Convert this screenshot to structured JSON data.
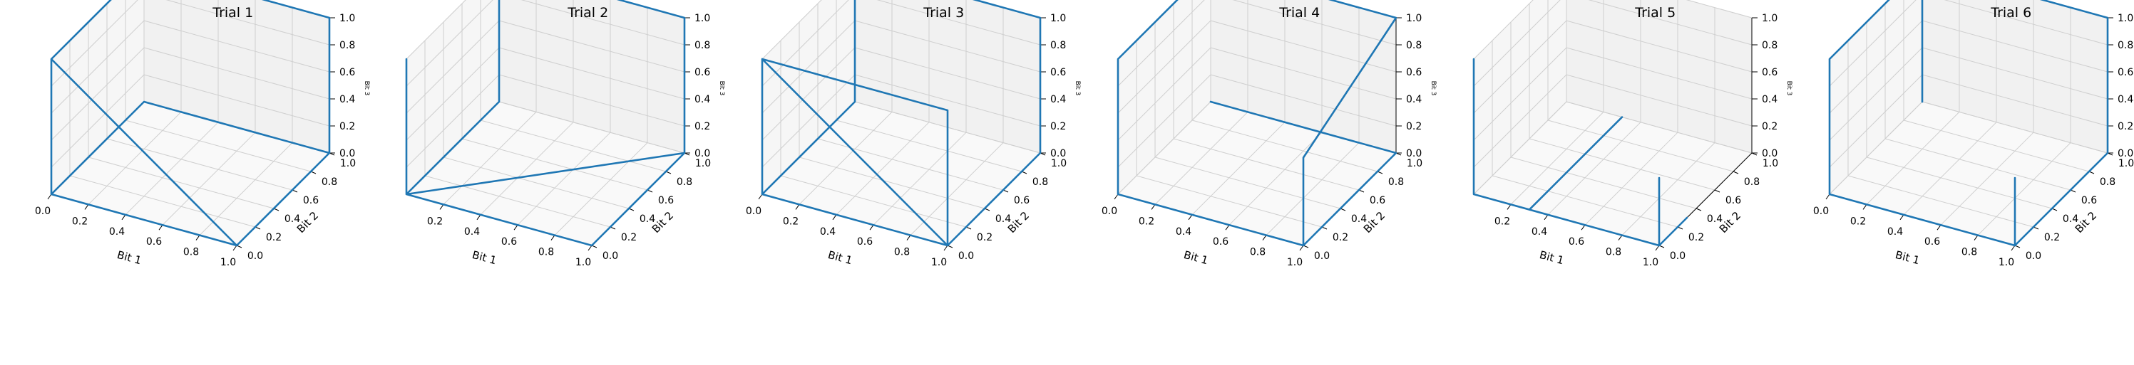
{
  "chart_data": [
    {
      "type": "line3d",
      "title": "Trial 1",
      "xlabel": "Bit 1",
      "ylabel": "Bit 2",
      "zlabel": "Bit 3",
      "xlim": [
        0,
        1
      ],
      "ylim": [
        0,
        1
      ],
      "zlim": [
        0,
        1
      ],
      "xticks": [
        "0.0",
        "0.2",
        "0.4",
        "0.6",
        "0.8",
        "1.0"
      ],
      "yticks": [
        "0.0",
        "0.2",
        "0.4",
        "0.6",
        "0.8",
        "1.0"
      ],
      "zticks": [
        "0.0",
        "0.2",
        "0.4",
        "0.6",
        "0.8",
        "1.0"
      ],
      "grid": true,
      "series": [
        {
          "color": "#1f77b4",
          "points": [
            [
              0,
              0,
              1
            ],
            [
              1,
              0,
              0
            ],
            [
              1,
              1,
              0
            ],
            [
              1,
              1,
              1
            ],
            [
              0,
              1,
              1
            ],
            [
              0,
              0,
              1
            ],
            [
              0,
              0,
              0
            ],
            [
              1,
              0,
              0
            ],
            [
              1,
              1,
              0
            ],
            [
              0,
              1,
              0
            ],
            [
              0,
              0,
              0
            ]
          ]
        }
      ]
    },
    {
      "type": "line3d",
      "title": "Trial 2",
      "xlabel": "Bit 1",
      "ylabel": "Bit 2",
      "zlabel": "Bit 3",
      "xlim": [
        0,
        1
      ],
      "ylim": [
        0,
        1
      ],
      "zlim": [
        0,
        1
      ],
      "xticks": [
        "0.2",
        "0.4",
        "0.6",
        "0.8",
        "1.0"
      ],
      "yticks": [
        "0.0",
        "0.2",
        "0.4",
        "0.6",
        "0.8",
        "1.0"
      ],
      "zticks": [
        "0.0",
        "0.2",
        "0.4",
        "0.6",
        "0.8",
        "1.0"
      ],
      "grid": true,
      "series": [
        {
          "color": "#1f77b4",
          "points": [
            [
              0,
              0,
              1
            ],
            [
              0,
              0,
              0
            ],
            [
              1,
              0,
              0
            ],
            [
              1,
              1,
              0
            ],
            [
              1,
              1,
              1
            ],
            [
              0,
              1,
              1
            ],
            [
              0,
              1,
              0
            ],
            [
              0,
              0,
              0
            ],
            [
              1,
              1,
              0
            ]
          ]
        }
      ]
    },
    {
      "type": "line3d",
      "title": "Trial 3",
      "xlabel": "Bit 1",
      "ylabel": "Bit 2",
      "zlabel": "Bit 3",
      "xlim": [
        0,
        1
      ],
      "ylim": [
        0,
        1
      ],
      "zlim": [
        0,
        1
      ],
      "xticks": [
        "0.0",
        "0.2",
        "0.4",
        "0.6",
        "0.8",
        "1.0"
      ],
      "yticks": [
        "0.0",
        "0.2",
        "0.4",
        "0.6",
        "0.8",
        "1.0"
      ],
      "zticks": [
        "0.0",
        "0.2",
        "0.4",
        "0.6",
        "0.8",
        "1.0"
      ],
      "grid": true,
      "series": [
        {
          "color": "#1f77b4",
          "points": [
            [
              0,
              0,
              1
            ],
            [
              1,
              0,
              0
            ],
            [
              1,
              0,
              1
            ],
            [
              0,
              0,
              1
            ],
            [
              0,
              0,
              0
            ],
            [
              1,
              0,
              0
            ],
            [
              1,
              1,
              0
            ],
            [
              1,
              1,
              1
            ],
            [
              0,
              1,
              1
            ],
            [
              0,
              1,
              0
            ],
            [
              0,
              0,
              0
            ]
          ]
        }
      ]
    },
    {
      "type": "line3d",
      "title": "Trial 4",
      "xlabel": "Bit 1",
      "ylabel": "Bit 2",
      "zlabel": "Bit 3",
      "xlim": [
        0,
        1
      ],
      "ylim": [
        0,
        1
      ],
      "zlim": [
        0,
        1
      ],
      "xticks": [
        "0.0",
        "0.2",
        "0.4",
        "0.6",
        "0.8",
        "1.0"
      ],
      "yticks": [
        "0.0",
        "0.2",
        "0.4",
        "0.6",
        "0.8",
        "1.0"
      ],
      "zticks": [
        "0.0",
        "0.2",
        "0.4",
        "0.6",
        "0.8",
        "1.0"
      ],
      "grid": true,
      "series": [
        {
          "color": "#1f77b4",
          "points": [
            [
              1,
              0,
              0
            ],
            [
              1,
              0,
              0.65
            ],
            [
              1,
              1,
              1
            ],
            [
              0,
              1,
              1
            ],
            [
              0,
              0,
              1
            ],
            [
              0,
              0,
              0
            ],
            [
              1,
              0,
              0
            ],
            [
              1,
              1,
              0
            ],
            [
              0,
              1,
              0
            ]
          ]
        }
      ]
    },
    {
      "type": "line3d",
      "title": "Trial 5",
      "xlabel": "Bit 1",
      "ylabel": "Bit 2",
      "zlabel": "Bit 3",
      "xlim": [
        0,
        1
      ],
      "ylim": [
        0,
        1
      ],
      "zlim": [
        0,
        1
      ],
      "xticks": [
        "0.2",
        "0.4",
        "0.6",
        "0.8",
        "1.0"
      ],
      "yticks": [
        "0.0",
        "0.2",
        "0.4",
        "0.6",
        "0.8",
        "1.0"
      ],
      "zticks": [
        "0.0",
        "0.2",
        "0.4",
        "0.6",
        "0.8",
        "1.0"
      ],
      "grid": true,
      "series": [
        {
          "color": "#1f77b4",
          "points": [
            [
              0,
              0,
              1
            ],
            [
              0,
              0,
              0
            ],
            [
              1,
              0,
              0
            ],
            [
              1,
              0.3,
              0
            ]
          ]
        },
        {
          "color": "#1f77b4",
          "points": [
            [
              0.3,
              0,
              0
            ],
            [
              0.3,
              1,
              0
            ]
          ]
        },
        {
          "color": "#1f77b4",
          "points": [
            [
              1,
              0,
              0.5
            ],
            [
              1,
              0,
              0
            ]
          ]
        }
      ]
    },
    {
      "type": "line3d",
      "title": "Trial 6",
      "xlabel": "Bit 1",
      "ylabel": "Bit 2",
      "zlabel": "Bit 3",
      "xlim": [
        0,
        1
      ],
      "ylim": [
        0,
        1
      ],
      "zlim": [
        0,
        1
      ],
      "xticks": [
        "0.0",
        "0.2",
        "0.4",
        "0.6",
        "0.8",
        "1.0"
      ],
      "yticks": [
        "0.0",
        "0.2",
        "0.4",
        "0.6",
        "0.8",
        "1.0"
      ],
      "zticks": [
        "0.0",
        "0.2",
        "0.4",
        "0.6",
        "0.8",
        "1.0"
      ],
      "grid": true,
      "series": [
        {
          "color": "#1f77b4",
          "points": [
            [
              1,
              0,
              0
            ],
            [
              1,
              0,
              0.5
            ]
          ]
        },
        {
          "color": "#1f77b4",
          "points": [
            [
              0,
              0,
              1
            ],
            [
              0,
              1,
              1
            ],
            [
              1,
              1,
              1
            ],
            [
              1,
              1,
              0
            ],
            [
              1,
              0,
              0
            ],
            [
              0,
              0,
              0
            ],
            [
              0,
              0,
              1
            ]
          ]
        },
        {
          "color": "#1f77b4",
          "points": [
            [
              0,
              1,
              1
            ],
            [
              0,
              1,
              0
            ]
          ]
        }
      ]
    }
  ]
}
